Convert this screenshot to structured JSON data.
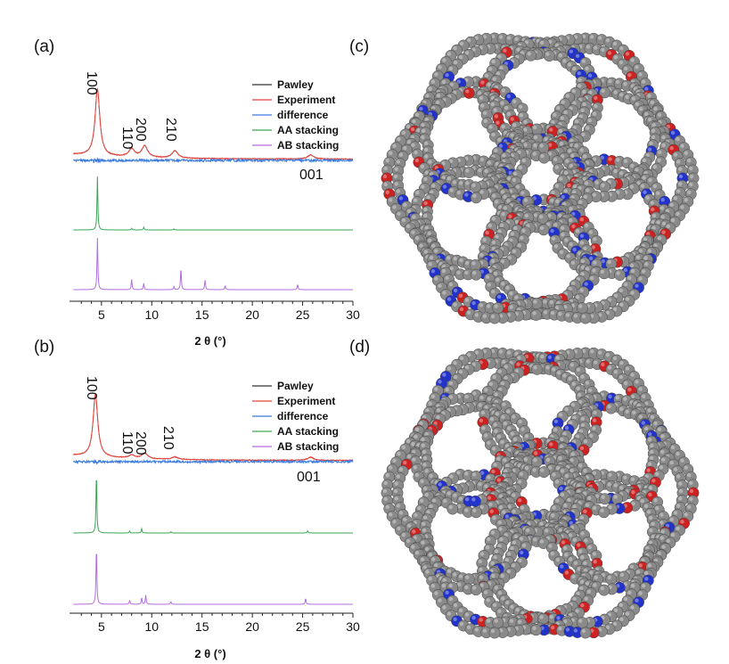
{
  "panels": [
    {
      "id": "a",
      "label": "(a)"
    },
    {
      "id": "b",
      "label": "(b)"
    },
    {
      "id": "c",
      "label": "(c)"
    },
    {
      "id": "d",
      "label": "(d)"
    }
  ],
  "colors": {
    "pawley": "#333333",
    "experiment": "#e8453c",
    "difference": "#3a7be0",
    "aa": "#3aa655",
    "ab": "#b36ee0",
    "carbon": "#8a8a8a",
    "nitrogen": "#2233cc",
    "oxygen": "#cc2222"
  },
  "chart_data": [
    {
      "panel": "(a)",
      "type": "line",
      "xlabel": "2 θ (°)",
      "ylabel": "",
      "xlim": [
        2,
        30
      ],
      "x_ticks": [
        5,
        10,
        15,
        20,
        25,
        30
      ],
      "y_ticks_shown": false,
      "grid": false,
      "legend_position": "top-right",
      "series": [
        {
          "name": "Pawley",
          "color": "#333333",
          "peaks": [
            [
              4.6,
              1.0
            ],
            [
              8.0,
              0.12
            ],
            [
              9.3,
              0.17
            ],
            [
              12.3,
              0.11
            ],
            [
              25.8,
              0.06
            ]
          ]
        },
        {
          "name": "Experiment",
          "color": "#e8453c",
          "peaks": [
            [
              4.6,
              1.0
            ],
            [
              8.0,
              0.12
            ],
            [
              9.3,
              0.17
            ],
            [
              12.3,
              0.11
            ],
            [
              25.8,
              0.06
            ]
          ]
        },
        {
          "name": "difference",
          "color": "#3a7be0",
          "peaks": []
        },
        {
          "name": "AA stacking",
          "color": "#3aa655",
          "peaks": [
            [
              4.6,
              1.0
            ],
            [
              8.0,
              0.03
            ],
            [
              9.2,
              0.05
            ],
            [
              12.2,
              0.02
            ]
          ]
        },
        {
          "name": "AB stacking",
          "color": "#b36ee0",
          "peaks": [
            [
              4.6,
              1.0
            ],
            [
              8.0,
              0.2
            ],
            [
              9.2,
              0.12
            ],
            [
              12.2,
              0.06
            ],
            [
              12.9,
              0.42
            ],
            [
              15.3,
              0.2
            ],
            [
              17.3,
              0.08
            ],
            [
              24.5,
              0.1
            ]
          ]
        }
      ],
      "annotations": [
        "100",
        "110",
        "200",
        "210",
        "001"
      ]
    },
    {
      "panel": "(b)",
      "type": "line",
      "xlabel": "2 θ (°)",
      "ylabel": "",
      "xlim": [
        2,
        30
      ],
      "x_ticks": [
        5,
        10,
        15,
        20,
        25,
        30
      ],
      "y_ticks_shown": false,
      "grid": false,
      "legend_position": "top-right",
      "series": [
        {
          "name": "Pawley",
          "color": "#333333",
          "peaks": [
            [
              4.4,
              1.0
            ],
            [
              8.0,
              0.05
            ],
            [
              9.3,
              0.09
            ],
            [
              12.3,
              0.04
            ],
            [
              25.8,
              0.05
            ]
          ]
        },
        {
          "name": "Experiment",
          "color": "#e8453c",
          "peaks": [
            [
              4.4,
              1.0
            ],
            [
              8.0,
              0.05
            ],
            [
              9.3,
              0.09
            ],
            [
              12.3,
              0.04
            ],
            [
              25.8,
              0.05
            ]
          ]
        },
        {
          "name": "difference",
          "color": "#3a7be0",
          "peaks": []
        },
        {
          "name": "AA stacking",
          "color": "#3aa655",
          "peaks": [
            [
              4.5,
              1.0
            ],
            [
              7.8,
              0.03
            ],
            [
              9.0,
              0.07
            ],
            [
              11.9,
              0.02
            ],
            [
              25.5,
              0.04
            ]
          ]
        },
        {
          "name": "AB stacking",
          "color": "#b36ee0",
          "peaks": [
            [
              4.5,
              1.0
            ],
            [
              7.8,
              0.07
            ],
            [
              9.0,
              0.11
            ],
            [
              9.4,
              0.16
            ],
            [
              11.9,
              0.05
            ],
            [
              25.3,
              0.1
            ]
          ]
        }
      ],
      "annotations": [
        "100",
        "110",
        "200",
        "210",
        "001"
      ]
    }
  ]
}
